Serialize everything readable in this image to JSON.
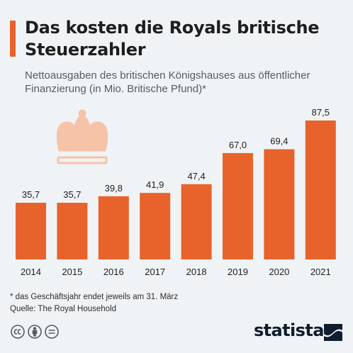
{
  "header": {
    "title": "Das kosten die Royals britische Steuerzahler",
    "subtitle": "Nettoausgaben des britischen Königshauses aus öffentlicher Finanzierung (in Mio. Britische Pfund)*"
  },
  "chart_data": {
    "type": "bar",
    "title": "Das kosten die Royals britische Steuerzahler",
    "subtitle": "Nettoausgaben des britischen Königshauses aus öffentlicher Finanzierung (in Mio. Britische Pfund)*",
    "categories": [
      "2014",
      "2015",
      "2016",
      "2017",
      "2018",
      "2019",
      "2020",
      "2021"
    ],
    "values": [
      35.7,
      35.7,
      39.8,
      41.9,
      47.4,
      67.0,
      69.4,
      87.5
    ],
    "value_labels": [
      "35,7",
      "35,7",
      "39,8",
      "41,9",
      "47,4",
      "67,0",
      "69,4",
      "87,5"
    ],
    "xlabel": "",
    "ylabel": "",
    "ylim": [
      0,
      87.5
    ],
    "grid": false,
    "legend": "none",
    "bar_color": "#e8632b"
  },
  "footer": {
    "note": "* das Geschäftsjahr endet jeweils am 31. März",
    "source": "Quelle: The Royal Household",
    "brand": "statista"
  },
  "icons": [
    "crown-icon",
    "cc-icon",
    "by-icon",
    "nd-icon",
    "statista-logo-icon"
  ],
  "colors": {
    "accent": "#e8632b",
    "crown": "#f4c3a8",
    "background": "#f0f3f5",
    "text": "#1e1e1e",
    "brand": "#0f1d2e"
  }
}
